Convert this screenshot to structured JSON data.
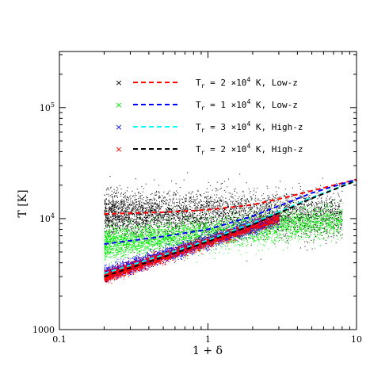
{
  "chart_data": {
    "type": "scatter",
    "title": "",
    "xlabel": "1 + δ",
    "ylabel": "T [K]",
    "xscale": "log",
    "yscale": "log",
    "xlim": [
      0.1,
      10
    ],
    "ylim": [
      1000,
      320000
    ],
    "grid": false,
    "legend_position": "top-center",
    "x_ticks": [
      {
        "value": 0.1,
        "label": "0.1"
      },
      {
        "value": 1,
        "label": "1"
      },
      {
        "value": 10,
        "label": "10"
      }
    ],
    "y_ticks": [
      {
        "value": 1000,
        "label": "1000"
      },
      {
        "value": 10000,
        "label": "10",
        "exponent": "4"
      },
      {
        "value": 100000,
        "label": "10",
        "exponent": "5"
      }
    ],
    "series": [
      {
        "name": "Tr = 2 ×10^4 K, Low-z",
        "label_parts": {
          "pre": "T",
          "sub": "r",
          "mid": " = 2 ×10",
          "sup": "4",
          "post": " K, Low-z"
        },
        "marker_color": "#000000",
        "line_color": "#ff0000",
        "scatter": {
          "x_range": [
            0.2,
            8
          ],
          "T0": 11000,
          "gamma": 0.0,
          "scatter_dex": 0.1
        },
        "fit": {
          "x": [
            0.2,
            0.5,
            1,
            2,
            3,
            5,
            10
          ],
          "y": [
            11000,
            11400,
            12000,
            13300,
            15000,
            17800,
            22500
          ]
        }
      },
      {
        "name": "Tr = 1 ×10^4 K, Low-z",
        "label_parts": {
          "pre": "T",
          "sub": "r",
          "mid": " = 1 ×10",
          "sup": "4",
          "post": " K, Low-z"
        },
        "marker_color": "#00ee00",
        "line_color": "#0000ff",
        "scatter": {
          "x_range": [
            0.2,
            8
          ],
          "T0": 7400,
          "gamma": 0.13,
          "scatter_dex": 0.07
        },
        "fit": {
          "x": [
            0.2,
            0.5,
            1,
            2,
            3,
            5,
            10
          ],
          "y": [
            5900,
            6900,
            8000,
            10500,
            13000,
            17000,
            22500
          ]
        }
      },
      {
        "name": "Tr = 3 ×10^4 K, High-z",
        "label_parts": {
          "pre": "T",
          "sub": "r",
          "mid": " = 3 ×10",
          "sup": "4",
          "post": " K, High-z"
        },
        "marker_color": "#0000ff",
        "line_color": "#00ffff",
        "scatter": {
          "x_range": [
            0.2,
            3
          ],
          "T0": 6300,
          "gamma": 0.43,
          "scatter_dex": 0.03
        },
        "fit": {
          "x": [
            0.2,
            0.5,
            1,
            2,
            3,
            5,
            10
          ],
          "y": [
            3200,
            4700,
            6400,
            9100,
            11500,
            15500,
            22000
          ]
        }
      },
      {
        "name": "Tr = 2 ×10^4 K, High-z",
        "label_parts": {
          "pre": "T",
          "sub": "r",
          "mid": " = 2 ×10",
          "sup": "4",
          "post": " K, High-z"
        },
        "marker_color": "#ff0000",
        "line_color": "#000000",
        "scatter": {
          "x_range": [
            0.2,
            3
          ],
          "T0": 6200,
          "gamma": 0.45,
          "scatter_dex": 0.025
        },
        "fit": {
          "x": [
            0.2,
            0.5,
            1,
            2,
            3,
            5,
            10
          ],
          "y": [
            3000,
            4500,
            6200,
            8800,
            11200,
            15200,
            22000
          ]
        }
      }
    ]
  }
}
